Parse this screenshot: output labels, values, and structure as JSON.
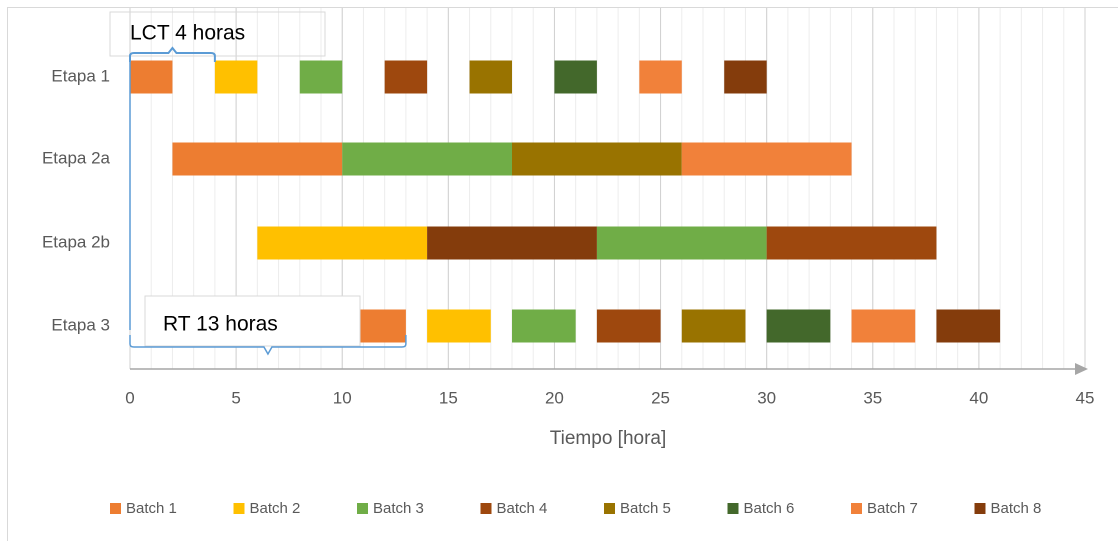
{
  "chart_data": {
    "type": "gantt",
    "categories": [
      "Etapa 1",
      "Etapa 2a",
      "Etapa 2b",
      "Etapa 3"
    ],
    "series": [
      {
        "name": "Batch 1",
        "color": "#ED7D31",
        "start": [
          0,
          2,
          null,
          10
        ],
        "end": [
          2,
          10,
          null,
          13
        ]
      },
      {
        "name": "Batch 2",
        "color": "#FFC000",
        "start": [
          4,
          null,
          6,
          14
        ],
        "end": [
          6,
          null,
          14,
          17
        ]
      },
      {
        "name": "Batch 3",
        "color": "#70AD47",
        "start": [
          8,
          10,
          22,
          18
        ],
        "end": [
          10,
          18,
          30,
          21
        ]
      },
      {
        "name": "Batch 4",
        "color": "#9E480E",
        "start": [
          12,
          null,
          30,
          22
        ],
        "end": [
          14,
          null,
          38,
          25
        ]
      },
      {
        "name": "Batch 5",
        "color": "#997300",
        "start": [
          16,
          18,
          null,
          26
        ],
        "end": [
          18,
          26,
          null,
          29
        ]
      },
      {
        "name": "Batch 6",
        "color": "#43682B",
        "start": [
          20,
          null,
          null,
          30
        ],
        "end": [
          22,
          null,
          null,
          33
        ]
      },
      {
        "name": "Batch 7",
        "color": "#F1813A",
        "start": [
          24,
          26,
          null,
          34
        ],
        "end": [
          26,
          34,
          null,
          37
        ]
      },
      {
        "name": "Batch 8",
        "color": "#843C0C",
        "start": [
          28,
          null,
          14,
          38
        ],
        "end": [
          30,
          null,
          22,
          41
        ]
      }
    ],
    "x_label": "Tiempo [hora]",
    "xlim": [
      0,
      45
    ],
    "xticks": [
      0,
      5,
      10,
      15,
      20,
      25,
      30,
      35,
      40,
      45
    ],
    "grid": true,
    "minor_grid": true,
    "legend": "bottom",
    "annotations": [
      {
        "text": "LCT  4 horas",
        "span": [
          0,
          4
        ],
        "row": "top"
      },
      {
        "text": "RT 13 horas",
        "span": [
          0,
          13
        ],
        "row": "bottom"
      }
    ]
  }
}
